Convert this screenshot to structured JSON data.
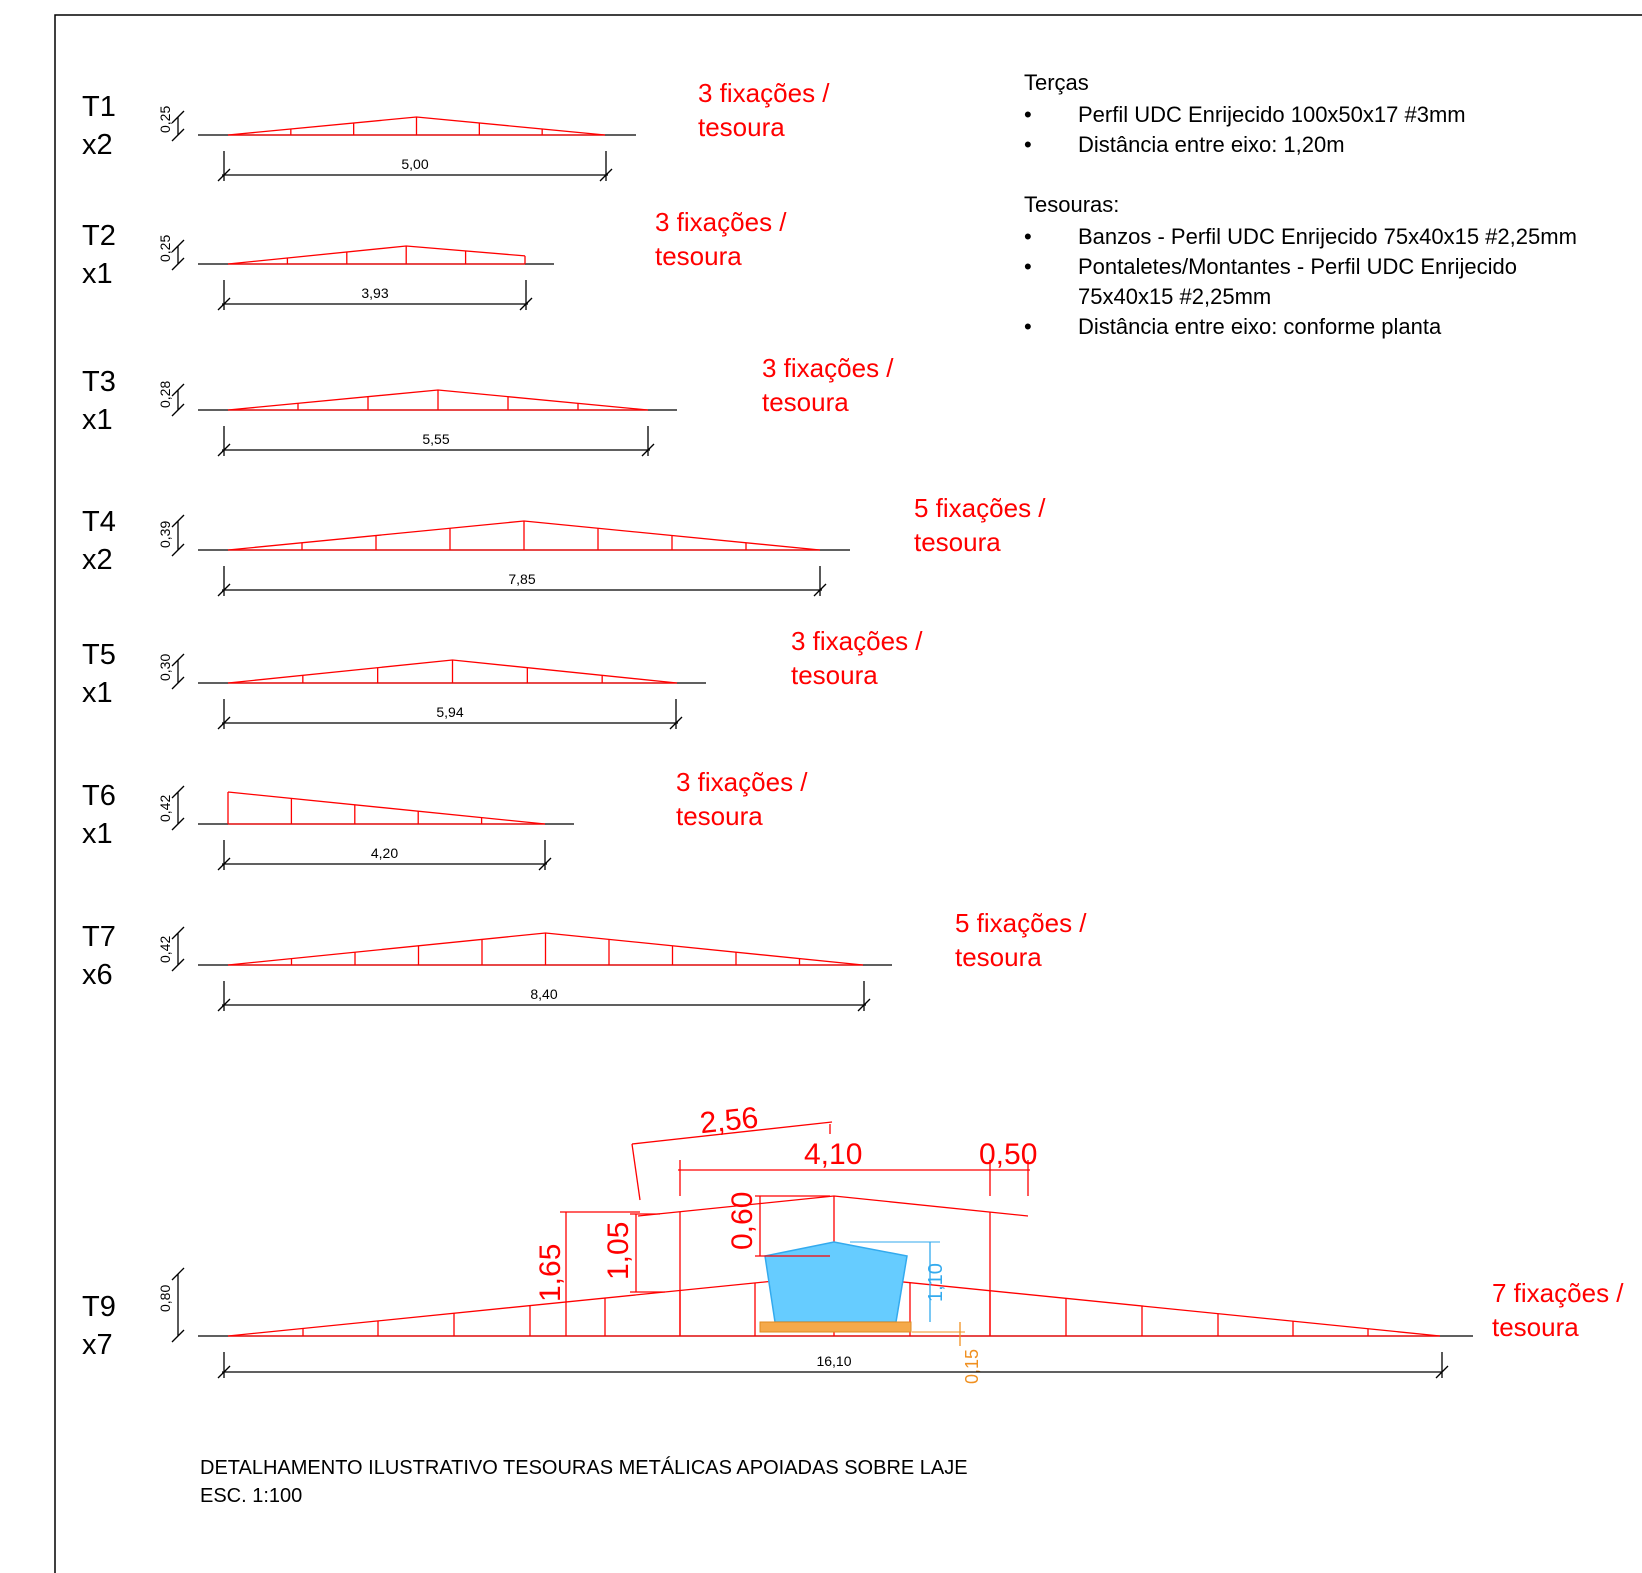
{
  "notes": {
    "tercas_title": "Terças",
    "tercas_items": [
      "Perfil UDC Enrijecido 100x50x17 #3mm",
      "Distância entre eixo: 1,20m"
    ],
    "tesouras_title": "Tesouras:",
    "tesouras_items": [
      "Banzos - Perfil UDC Enrijecido 75x40x15 #2,25mm",
      "Pontaletes/Montantes - Perfil UDC Enrijecido",
      "Distância entre eixo: conforme planta"
    ],
    "tesouras_item_continuation": "75x40x15 #2,25mm",
    "bullet": "•"
  },
  "trusses": [
    {
      "id": "T1",
      "count": "x2",
      "span": "5,00",
      "height": "0,25",
      "fix": [
        "3 fixações /",
        "tesoura"
      ],
      "type": "sym",
      "panels": 6
    },
    {
      "id": "T2",
      "count": "x1",
      "span": "3,93",
      "height": "0,25",
      "fix": [
        "3 fixações /",
        "tesoura"
      ],
      "type": "truncated",
      "panels": 5
    },
    {
      "id": "T3",
      "count": "x1",
      "span": "5,55",
      "height": "0,28",
      "fix": [
        "3 fixações /",
        "tesoura"
      ],
      "type": "sym",
      "panels": 6
    },
    {
      "id": "T4",
      "count": "x2",
      "span": "7,85",
      "height": "0,39",
      "fix": [
        "5 fixações /",
        "tesoura"
      ],
      "type": "sym",
      "panels": 8
    },
    {
      "id": "T5",
      "count": "x1",
      "span": "5,94",
      "height": "0,30",
      "fix": [
        "3 fixações /",
        "tesoura"
      ],
      "type": "sym",
      "panels": 6
    },
    {
      "id": "T6",
      "count": "x1",
      "span": "4,20",
      "height": "0,42",
      "fix": [
        "3 fixações /",
        "tesoura"
      ],
      "type": "mono",
      "panels": 5
    },
    {
      "id": "T7",
      "count": "x6",
      "span": "8,40",
      "height": "0,42",
      "fix": [
        "5 fixações /",
        "tesoura"
      ],
      "type": "sym",
      "panels": 10
    }
  ],
  "t9": {
    "id": "T9",
    "count": "x7",
    "span": "16,10",
    "height": "0,80",
    "fix": [
      "7 fixações /",
      "tesoura"
    ],
    "dims": {
      "d256": "2,56",
      "d410": "4,10",
      "d050": "0,50",
      "d060": "0,60",
      "d105": "1,05",
      "d165": "1,65",
      "d110": "1,10",
      "d015": "0,15"
    }
  },
  "colors": {
    "truss": "#ff0000",
    "tank": "#66ccff",
    "tank_dim": "#33aaee",
    "slab": "#f5a94a",
    "slab_dim": "#f09020"
  },
  "footer": {
    "title": "DETALHAMENTO ILUSTRATIVO TESOURAS METÁLICAS APOIADAS SOBRE LAJE",
    "scale": "ESC. 1:100"
  }
}
